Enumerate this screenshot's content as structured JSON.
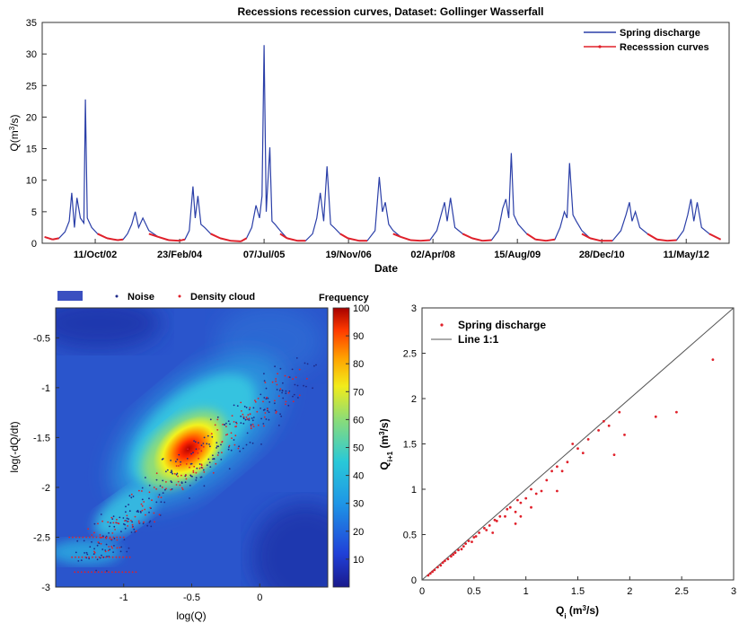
{
  "chart_data": [
    {
      "type": "line",
      "title": "Recessions recession curves, Dataset: Gollinger Wasserfall",
      "xlabel": "Date",
      "ylabel": "Q(m³/s)",
      "ylim": [
        0,
        35
      ],
      "x_ticks": [
        "11/Oct/02",
        "23/Feb/04",
        "07/Jul/05",
        "19/Nov/06",
        "02/Apr/08",
        "15/Aug/09",
        "28/Dec/10",
        "11/May/12"
      ],
      "y_ticks": [
        "0",
        "5",
        "10",
        "15",
        "20",
        "25",
        "30",
        "35"
      ],
      "legend": {
        "placement": "top-right"
      },
      "series": [
        {
          "name": "Spring discharge",
          "color": "#2b3fa8",
          "x": [
            "2001-12-15",
            "2002-02-01",
            "2002-03-10",
            "2002-04-15",
            "2002-05-10",
            "2002-05-25",
            "2002-06-10",
            "2002-06-25",
            "2002-07-15",
            "2002-08-05",
            "2002-08-14",
            "2002-08-25",
            "2002-09-20",
            "2002-10-25",
            "2002-12-20",
            "2003-02-20",
            "2003-03-25",
            "2003-04-20",
            "2003-05-15",
            "2003-06-05",
            "2003-06-25",
            "2003-07-20",
            "2003-08-25",
            "2003-10-20",
            "2003-12-20",
            "2004-02-20",
            "2004-03-25",
            "2004-04-20",
            "2004-05-12",
            "2004-05-25",
            "2004-06-10",
            "2004-06-28",
            "2004-07-20",
            "2004-08-25",
            "2004-10-20",
            "2004-12-20",
            "2005-02-20",
            "2005-03-25",
            "2005-04-25",
            "2005-05-20",
            "2005-06-10",
            "2005-06-25",
            "2005-07-07",
            "2005-07-20",
            "2005-08-10",
            "2005-08-23",
            "2005-09-10",
            "2005-10-10",
            "2005-11-20",
            "2006-01-20",
            "2006-03-10",
            "2006-04-20",
            "2006-05-15",
            "2006-06-05",
            "2006-06-25",
            "2006-07-15",
            "2006-08-05",
            "2006-08-25",
            "2006-10-01",
            "2006-11-15",
            "2007-01-20",
            "2007-03-10",
            "2007-04-25",
            "2007-05-20",
            "2007-06-08",
            "2007-06-25",
            "2007-07-15",
            "2007-08-10",
            "2007-09-25",
            "2007-11-20",
            "2008-01-20",
            "2008-03-15",
            "2008-04-25",
            "2008-05-20",
            "2008-06-10",
            "2008-06-25",
            "2008-07-15",
            "2008-08-10",
            "2008-09-25",
            "2008-11-20",
            "2009-01-20",
            "2009-03-15",
            "2009-04-25",
            "2009-05-20",
            "2009-06-08",
            "2009-06-25",
            "2009-07-10",
            "2009-07-25",
            "2009-08-20",
            "2009-10-10",
            "2009-12-01",
            "2010-02-01",
            "2010-03-25",
            "2010-04-25",
            "2010-05-20",
            "2010-06-05",
            "2010-06-20",
            "2010-07-10",
            "2010-07-30",
            "2010-09-01",
            "2010-10-20",
            "2010-12-20",
            "2011-03-01",
            "2011-04-20",
            "2011-05-20",
            "2011-06-10",
            "2011-06-25",
            "2011-07-15",
            "2011-08-10",
            "2011-09-25",
            "2011-11-20",
            "2012-01-20",
            "2012-03-15",
            "2012-04-25",
            "2012-05-20",
            "2012-06-08",
            "2012-06-25",
            "2012-07-15",
            "2012-08-10",
            "2012-09-25",
            "2012-12-01"
          ],
          "values": [
            1.0,
            0.6,
            0.8,
            1.8,
            3.5,
            8.0,
            2.5,
            7.2,
            4.0,
            3.2,
            22.8,
            4.0,
            2.5,
            1.5,
            0.8,
            0.5,
            0.6,
            1.5,
            3.0,
            5.0,
            2.5,
            4.0,
            2.0,
            1.0,
            0.5,
            0.4,
            0.6,
            2.0,
            9.0,
            4.0,
            7.5,
            3.0,
            2.5,
            1.5,
            0.8,
            0.4,
            0.3,
            0.8,
            2.5,
            6.0,
            4.0,
            7.5,
            31.4,
            5.0,
            15.2,
            3.5,
            3.0,
            2.0,
            0.8,
            0.4,
            0.4,
            1.5,
            4.0,
            8.0,
            3.5,
            12.2,
            3.0,
            2.5,
            1.5,
            0.8,
            0.4,
            0.4,
            2.0,
            10.5,
            5.0,
            6.5,
            3.0,
            2.0,
            1.0,
            0.5,
            0.4,
            0.5,
            2.0,
            4.5,
            6.5,
            3.5,
            7.2,
            2.5,
            1.5,
            0.8,
            0.4,
            0.5,
            2.0,
            5.5,
            7.0,
            4.0,
            14.3,
            4.5,
            3.0,
            1.5,
            0.6,
            0.4,
            0.6,
            2.5,
            5.0,
            4.0,
            12.7,
            4.5,
            3.5,
            2.0,
            0.8,
            0.4,
            0.4,
            2.0,
            4.5,
            6.5,
            3.5,
            5.0,
            2.5,
            1.5,
            0.6,
            0.4,
            0.5,
            2.0,
            4.5,
            7.0,
            3.5,
            6.5,
            2.5,
            1.5,
            0.6
          ]
        },
        {
          "name": "Recesssion curves",
          "color": "#e0202a"
        }
      ]
    },
    {
      "type": "heatmap",
      "xlabel": "log(Q)",
      "ylabel": "log(-dQ/dt)",
      "xlim": [
        -1.5,
        0.5
      ],
      "ylim": [
        -3,
        -0.2
      ],
      "x_ticks": [
        "-1",
        "-0.5",
        "0"
      ],
      "y_ticks": [
        "-0.5",
        "-1",
        "-1.5",
        "-2",
        "-2.5",
        "-3"
      ],
      "colorbar": {
        "label": "Frequency",
        "range": [
          0,
          100
        ],
        "ticks": [
          "10",
          "20",
          "30",
          "40",
          "50",
          "60",
          "70",
          "80",
          "90",
          "100"
        ]
      },
      "density_peak": {
        "x": -0.5,
        "y": -1.6,
        "value": 100
      },
      "legend": {
        "placement": "top",
        "entries": [
          "Noise",
          "Density cloud"
        ]
      },
      "series": [
        {
          "name": "Noise",
          "color": "#1e2a8a"
        },
        {
          "name": "Density cloud",
          "color": "#e0202a"
        }
      ]
    },
    {
      "type": "scatter",
      "xlabel": "Qi (m³/s)",
      "ylabel": "Qi+1 (m³/s)",
      "xlim": [
        0,
        3
      ],
      "ylim": [
        0,
        3
      ],
      "x_ticks": [
        "0",
        "0.5",
        "1",
        "1.5",
        "2",
        "2.5",
        "3"
      ],
      "y_ticks": [
        "0",
        "0.5",
        "1",
        "1.5",
        "2",
        "2.5",
        "3"
      ],
      "legend": {
        "placement": "top-left"
      },
      "series": [
        {
          "name": "Spring discharge",
          "color": "#e0202a",
          "points": [
            [
              2.8,
              2.43
            ],
            [
              2.45,
              1.85
            ],
            [
              2.25,
              1.8
            ],
            [
              1.95,
              1.6
            ],
            [
              1.9,
              1.85
            ],
            [
              1.85,
              1.38
            ],
            [
              1.8,
              1.7
            ],
            [
              1.75,
              1.75
            ],
            [
              1.7,
              1.65
            ],
            [
              1.6,
              1.55
            ],
            [
              1.55,
              1.4
            ],
            [
              1.5,
              1.45
            ],
            [
              1.45,
              1.5
            ],
            [
              1.4,
              1.3
            ],
            [
              1.35,
              1.2
            ],
            [
              1.3,
              1.25
            ],
            [
              1.25,
              1.2
            ],
            [
              1.2,
              1.1
            ],
            [
              1.15,
              0.98
            ],
            [
              1.1,
              0.95
            ],
            [
              1.05,
              1.0
            ],
            [
              1.0,
              0.9
            ],
            [
              0.95,
              0.85
            ],
            [
              0.92,
              0.88
            ],
            [
              0.9,
              0.75
            ],
            [
              0.85,
              0.8
            ],
            [
              0.82,
              0.78
            ],
            [
              0.8,
              0.7
            ],
            [
              0.75,
              0.7
            ],
            [
              0.72,
              0.65
            ],
            [
              0.7,
              0.66
            ],
            [
              0.65,
              0.6
            ],
            [
              0.62,
              0.55
            ],
            [
              0.6,
              0.57
            ],
            [
              0.55,
              0.52
            ],
            [
              0.52,
              0.48
            ],
            [
              0.5,
              0.47
            ],
            [
              0.48,
              0.42
            ],
            [
              0.45,
              0.43
            ],
            [
              0.42,
              0.4
            ],
            [
              0.4,
              0.37
            ],
            [
              0.38,
              0.34
            ],
            [
              0.35,
              0.33
            ],
            [
              0.32,
              0.3
            ],
            [
              0.3,
              0.28
            ],
            [
              0.28,
              0.26
            ],
            [
              0.25,
              0.23
            ],
            [
              0.22,
              0.21
            ],
            [
              0.2,
              0.19
            ],
            [
              0.18,
              0.16
            ],
            [
              0.15,
              0.14
            ],
            [
              0.12,
              0.11
            ],
            [
              0.1,
              0.09
            ],
            [
              0.08,
              0.07
            ],
            [
              0.06,
              0.05
            ],
            [
              1.05,
              0.8
            ],
            [
              0.9,
              0.62
            ],
            [
              0.68,
              0.52
            ],
            [
              1.3,
              0.98
            ],
            [
              0.95,
              0.7
            ]
          ]
        },
        {
          "name": "Line 1:1",
          "color": "#555555"
        }
      ]
    }
  ]
}
